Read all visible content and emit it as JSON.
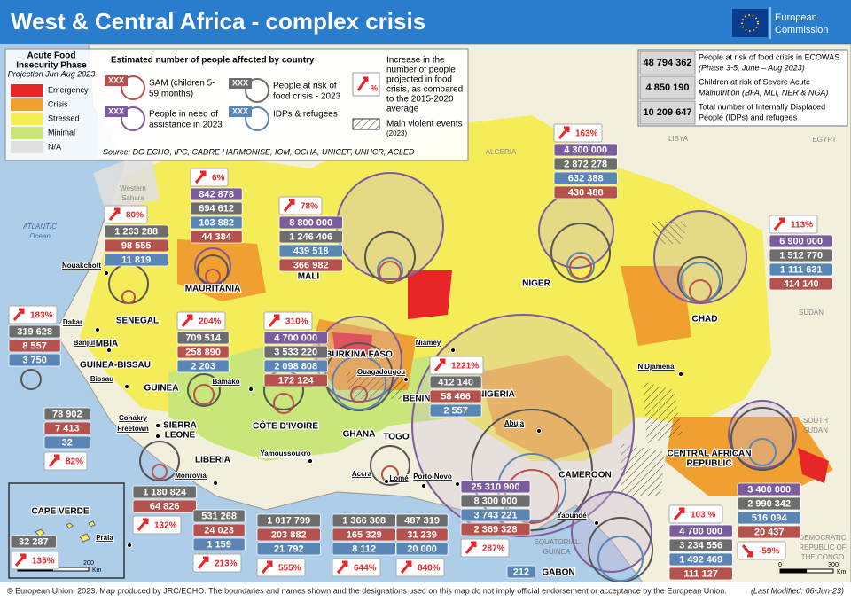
{
  "header": {
    "title": "West & Central Africa - complex crisis",
    "logo": [
      "European",
      "Commission"
    ]
  },
  "legend": {
    "phase_title": [
      "Acute Food",
      "Insecurity Phase"
    ],
    "phase_subtitle": "Projection Jun-Aug 2023",
    "phases": [
      {
        "label": "Emergency",
        "color": "#e8262a"
      },
      {
        "label": "Crisis",
        "color": "#f0a030"
      },
      {
        "label": "Stressed",
        "color": "#f5ec5a"
      },
      {
        "label": "Minimal",
        "color": "#c8e67a"
      },
      {
        "label": "N/A",
        "color": "#e0e0e0"
      }
    ],
    "people_title": "Estimated number of people affected by country",
    "placeholder": "XXX",
    "items": [
      {
        "label": [
          "SAM (children 5-",
          "59 months)"
        ],
        "color": "#b5524e"
      },
      {
        "label": [
          "People in need of",
          "assistance in 2023"
        ],
        "color": "#7b5c9c"
      },
      {
        "label": [
          "People at risk of",
          "food crisis - 2023"
        ],
        "color": "#6d6d6d"
      },
      {
        "label": [
          "IDPs & refugees"
        ],
        "color": "#5a86b5"
      }
    ],
    "increase_symbol": "%",
    "increase_text": [
      "Increase in the",
      "number of people",
      "projected in food",
      "crisis, as compared",
      "to the 2015-2020",
      "average"
    ],
    "violence": [
      "Main violent events",
      "(2023)"
    ],
    "source": "Source: DG ECHO, IPC, CADRE HARMONISE, IOM, OCHA, UNICEF, UNHCR, ACLED"
  },
  "summary": [
    {
      "value": "48 794 362",
      "text": [
        "People at risk of food crisis in ECOWAS",
        "(Phase 3-5, June – Aug 2023)"
      ]
    },
    {
      "value": "4 850 190",
      "text": [
        "Children at risk of Severe Acute",
        "Malnutrition (BFA, MLI, NER & NGA)"
      ]
    },
    {
      "value": "10 209 647",
      "text": [
        "Total number of Internally Displaced",
        "People (IDPs) and refugees"
      ]
    }
  ],
  "countries": [
    {
      "pct": "80%",
      "rows": [
        {
          "text": "1 263 288",
          "color": "#6d6d6d"
        },
        {
          "text": "98 555",
          "color": "#b5524e"
        },
        {
          "text": "11 819",
          "color": "#5a86b5"
        }
      ]
    },
    {
      "pct": "6%",
      "rows": [
        {
          "text": "842 878",
          "color": "#7b5c9c"
        },
        {
          "text": "694 612",
          "color": "#6d6d6d"
        },
        {
          "text": "103 882",
          "color": "#5a86b5"
        },
        {
          "text": "44 384",
          "color": "#b5524e"
        }
      ]
    },
    {
      "pct": "78%",
      "rows": [
        {
          "text": "8 800 000",
          "color": "#7b5c9c"
        },
        {
          "text": "1 246 406",
          "color": "#6d6d6d"
        },
        {
          "text": "439 518",
          "color": "#5a86b5"
        },
        {
          "text": "366 982",
          "color": "#b5524e"
        }
      ]
    },
    {
      "pct": "163%",
      "rows": [
        {
          "text": "4 300 000",
          "color": "#7b5c9c"
        },
        {
          "text": "2 872 278",
          "color": "#6d6d6d"
        },
        {
          "text": "632 388",
          "color": "#5a86b5"
        },
        {
          "text": "430 488",
          "color": "#b5524e"
        }
      ]
    },
    {
      "pct": "113%",
      "rows": [
        {
          "text": "6 900 000",
          "color": "#7b5c9c"
        },
        {
          "text": "1 512 770",
          "color": "#6d6d6d"
        },
        {
          "text": "1 111 631",
          "color": "#5a86b5"
        },
        {
          "text": "414 140",
          "color": "#b5524e"
        }
      ]
    },
    {
      "pct": "183%",
      "rows": [
        {
          "text": "319 628",
          "color": "#6d6d6d"
        },
        {
          "text": "8 557",
          "color": "#b5524e"
        },
        {
          "text": "3 750",
          "color": "#5a86b5"
        }
      ]
    },
    {
      "pct": "204%",
      "rows": [
        {
          "text": "709 514",
          "color": "#6d6d6d"
        },
        {
          "text": "258 890",
          "color": "#b5524e"
        },
        {
          "text": "2 203",
          "color": "#5a86b5"
        }
      ]
    },
    {
      "pct": "310%",
      "rows": [
        {
          "text": "4 700 000",
          "color": "#7b5c9c"
        },
        {
          "text": "3 533 220",
          "color": "#6d6d6d"
        },
        {
          "text": "2 098 808",
          "color": "#5a86b5"
        },
        {
          "text": "172 124",
          "color": "#b5524e"
        }
      ]
    },
    {
      "pct": "1221%",
      "rows": [
        {
          "text": "412 140",
          "color": "#6d6d6d"
        },
        {
          "text": "58 466",
          "color": "#b5524e"
        },
        {
          "text": "2 557",
          "color": "#5a86b5"
        }
      ]
    },
    {
      "pct": "82%",
      "rows": [
        {
          "text": "78 902",
          "color": "#6d6d6d"
        },
        {
          "text": "7 413",
          "color": "#b5524e"
        },
        {
          "text": "32",
          "color": "#5a86b5"
        }
      ]
    },
    {
      "pct": "132%",
      "rows": [
        {
          "text": "1 180 824",
          "color": "#6d6d6d"
        },
        {
          "text": "64 826",
          "color": "#b5524e"
        }
      ]
    },
    {
      "pct": "213%",
      "rows": [
        {
          "text": "531 268",
          "color": "#6d6d6d"
        },
        {
          "text": "24 023",
          "color": "#b5524e"
        },
        {
          "text": "1 159",
          "color": "#5a86b5"
        }
      ]
    },
    {
      "pct": "555%",
      "rows": [
        {
          "text": "1 017 799",
          "color": "#6d6d6d"
        },
        {
          "text": "203 882",
          "color": "#b5524e"
        },
        {
          "text": "21 792",
          "color": "#5a86b5"
        }
      ]
    },
    {
      "pct": "644%",
      "rows": [
        {
          "text": "1 366 308",
          "color": "#6d6d6d"
        },
        {
          "text": "165 329",
          "color": "#b5524e"
        },
        {
          "text": "8 112",
          "color": "#5a86b5"
        }
      ]
    },
    {
      "pct": "840%",
      "rows": [
        {
          "text": "487 319",
          "color": "#6d6d6d"
        },
        {
          "text": "31 239",
          "color": "#b5524e"
        },
        {
          "text": "20 000",
          "color": "#5a86b5"
        }
      ]
    },
    {
      "pct": "287%",
      "rows": [
        {
          "text": "25 310 900",
          "color": "#7b5c9c"
        },
        {
          "text": "8 300 000",
          "color": "#6d6d6d"
        },
        {
          "text": "3 743 221",
          "color": "#5a86b5"
        },
        {
          "text": "2 369 328",
          "color": "#b5524e"
        }
      ]
    },
    {
      "pct": "103 %",
      "rows": [
        {
          "text": "4 700 000",
          "color": "#7b5c9c"
        },
        {
          "text": "3 234 556",
          "color": "#6d6d6d"
        },
        {
          "text": "1 492 469",
          "color": "#5a86b5"
        },
        {
          "text": "111 127",
          "color": "#b5524e"
        }
      ]
    },
    {
      "pct": "-59%",
      "rows": [
        {
          "text": "3 400 000",
          "color": "#7b5c9c"
        },
        {
          "text": "2 990 342",
          "color": "#6d6d6d"
        },
        {
          "text": "516 094",
          "color": "#5a86b5"
        },
        {
          "text": "20 437",
          "color": "#b5524e"
        }
      ]
    },
    {
      "pct": "135%",
      "rows": [
        {
          "text": "32 287",
          "color": "#6d6d6d"
        }
      ]
    },
    {
      "rows": [
        {
          "text": "212",
          "color": "#5a86b5"
        }
      ]
    }
  ],
  "map_labels": [
    [
      "ATLANTIC",
      "Ocean"
    ],
    [
      "Western",
      "Sahara"
    ],
    [
      "ALGERIA"
    ],
    [
      "LIBYA"
    ],
    [
      "EGYPT"
    ],
    [
      "SUDAN"
    ],
    [
      "SOUTH",
      "SUDAN"
    ],
    [
      "DEMOCRATIC",
      "REPUBLIC OF",
      "THE CONGO"
    ],
    [
      "MAURITANIA"
    ],
    [
      "MALI"
    ],
    [
      "NIGER"
    ],
    [
      "CHAD"
    ],
    [
      "SENEGAL"
    ],
    [
      "GAMBIA"
    ],
    [
      "GUINEA-BISSAU"
    ],
    [
      "GUINEA"
    ],
    [
      "SIERRA",
      "LEONE"
    ],
    [
      "LIBERIA"
    ],
    [
      "CÔTE D'IVOIRE"
    ],
    [
      "GHANA"
    ],
    [
      "TOGO"
    ],
    [
      "BENIN"
    ],
    [
      "BURKINA FASO"
    ],
    [
      "NIGERIA"
    ],
    [
      "CAMEROON"
    ],
    [
      "CENTRAL AFRICAN",
      "REPUBLIC"
    ],
    [
      "EQUATORIAL",
      "GUINEA"
    ],
    [
      "GABON"
    ],
    [
      "CAPE VERDE"
    ]
  ],
  "capitals": [
    "Nouakchott",
    "Dakar",
    "Banjul",
    "Bissau",
    "Conakry",
    "Freetown",
    "Monrovia",
    "Bamako",
    "Yamoussoukro",
    "Accra",
    "Lomé",
    "Porto-Novo",
    "Ouagadougou",
    "Niamey",
    "Abuja",
    "N'Djamena",
    "Yaoundé",
    "Praia"
  ],
  "scales": [
    {
      "ticks": [
        "0",
        "200"
      ],
      "unit": "Km"
    },
    {
      "ticks": [
        "0",
        "300"
      ],
      "unit": "Km"
    }
  ],
  "footer": {
    "text": "© European Union, 2023. Map produced by JRC/ECHO. The boundaries and names shown and the designations used on this map do not imply official endorsement or acceptance by the European Union.",
    "modified": "(Last Modified: 06-Jun-23)"
  }
}
